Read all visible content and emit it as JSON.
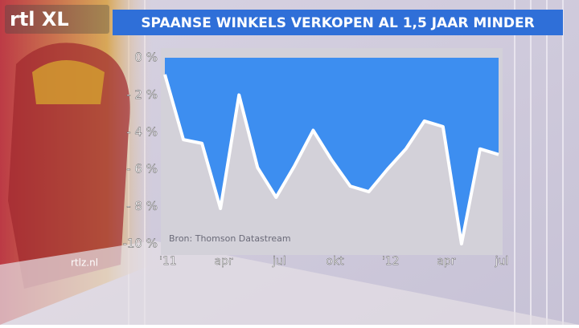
{
  "logo": "rtl XL",
  "site": "rtlz.nl",
  "chart_data": {
    "type": "area",
    "title": "SPAANSE WINKELS VERKOPEN AL 1,5 JAAR MINDER",
    "source": "Bron: Thomson Datastream",
    "categories": [
      "'11",
      null,
      null,
      "apr",
      null,
      null,
      "jul",
      null,
      null,
      "okt",
      null,
      null,
      "'12",
      null,
      null,
      "apr",
      null,
      null,
      "jul"
    ],
    "values": [
      -0.9,
      -4.4,
      -4.6,
      -8.1,
      -2.0,
      -5.9,
      -7.5,
      -5.8,
      -3.9,
      -5.5,
      -6.9,
      -7.2,
      -6.0,
      -4.9,
      -3.4,
      -3.7,
      -10.0,
      -4.9,
      -5.2
    ],
    "color": "#3d8ef0",
    "ylim": [
      -10.6,
      0
    ],
    "yticks": [
      {
        "value": 0,
        "label": "0 %"
      },
      {
        "value": -2,
        "label": "- 2 %"
      },
      {
        "value": -4,
        "label": "- 4 %"
      },
      {
        "value": -6,
        "label": "- 6 %"
      },
      {
        "value": -8,
        "label": "- 8 %"
      },
      {
        "value": -10,
        "label": "-10 %"
      }
    ]
  }
}
